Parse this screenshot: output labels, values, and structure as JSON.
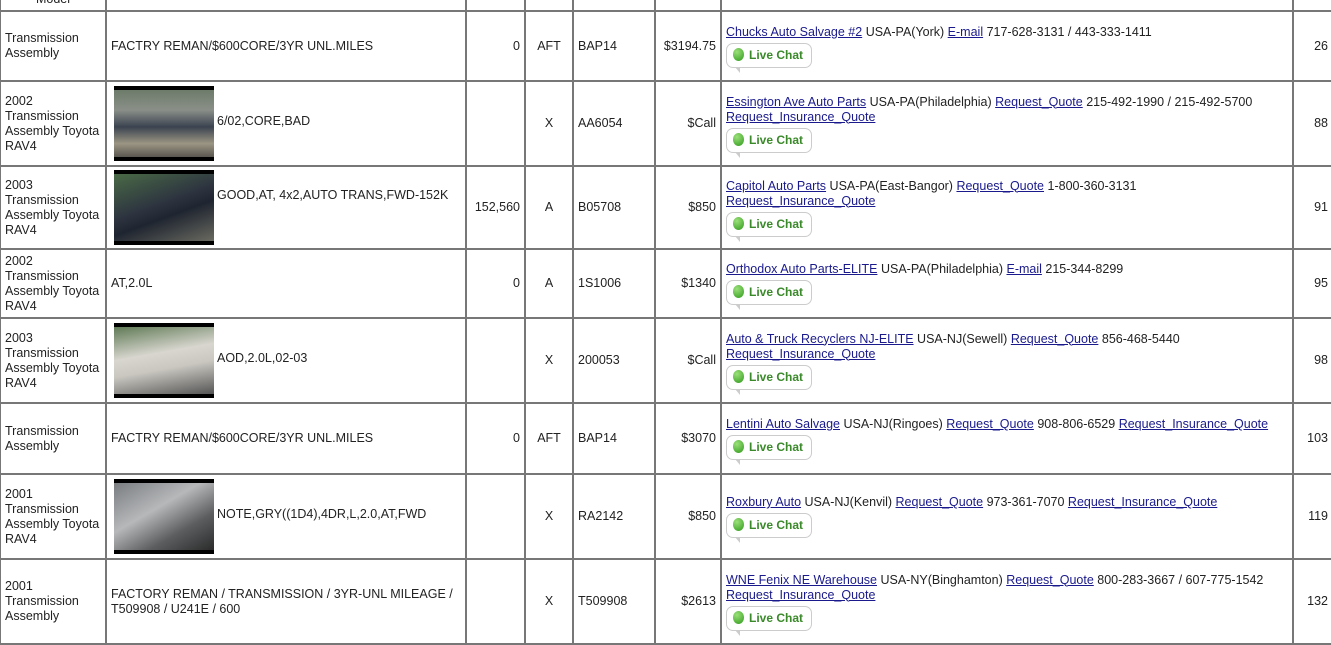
{
  "header_fragment": "Model",
  "live_chat_label": "Live Chat",
  "rows": [
    {
      "part": "Transmission Assembly",
      "photo": false,
      "desc": "FACTRY REMAN/$600CORE/3YR UNL.MILES",
      "miles": "0",
      "grade": "AFT",
      "stock": "BAP14",
      "price": "$3194.75",
      "dealer": "Chucks Auto Salvage #2",
      "location": "USA-PA(York)",
      "link1": "E-mail",
      "phone": "717-628-3131 / 443-333-1411",
      "link2": "",
      "dist": "26"
    },
    {
      "part": "2002 Transmission Assembly Toyota RAV4",
      "photo": true,
      "desc": "6/02,CORE,BAD",
      "miles": "",
      "grade": "X",
      "stock": "AA6054",
      "price": "$Call",
      "dealer": "Essington Ave Auto Parts",
      "location": "USA-PA(Philadelphia)",
      "link1": "Request_Quote",
      "phone": "215-492-1990 / 215-492-5700",
      "link2": "Request_Insurance_Quote",
      "dist": "88"
    },
    {
      "part": "2003 Transmission Assembly Toyota RAV4",
      "photo": true,
      "desc": "GOOD,AT, 4x2,AUTO TRANS,FWD-152K",
      "miles": "152,560",
      "grade": "A",
      "stock": "B05708",
      "price": "$850",
      "dealer": "Capitol Auto Parts",
      "location": "USA-PA(East-Bangor)",
      "link1": "Request_Quote",
      "phone": "1-800-360-3131",
      "link2": "Request_Insurance_Quote",
      "dist": "91"
    },
    {
      "part": "2002 Transmission Assembly Toyota RAV4",
      "photo": false,
      "desc": "AT,2.0L",
      "miles": "0",
      "grade": "A",
      "stock": "1S1006",
      "price": "$1340",
      "dealer": "Orthodox Auto Parts-ELITE",
      "location": "USA-PA(Philadelphia)",
      "link1": "E-mail",
      "phone": "215-344-8299",
      "link2": "",
      "dist": "95"
    },
    {
      "part": "2003 Transmission Assembly Toyota RAV4",
      "photo": true,
      "desc": "AOD,2.0L,02-03",
      "miles": "",
      "grade": "X",
      "stock": "200053",
      "price": "$Call",
      "dealer": "Auto & Truck Recyclers NJ-ELITE",
      "location": "USA-NJ(Sewell)",
      "link1": "Request_Quote",
      "phone": "856-468-5440",
      "link2": "Request_Insurance_Quote",
      "dist": "98"
    },
    {
      "part": "Transmission Assembly",
      "photo": false,
      "desc": "FACTRY REMAN/$600CORE/3YR UNL.MILES",
      "miles": "0",
      "grade": "AFT",
      "stock": "BAP14",
      "price": "$3070",
      "dealer": "Lentini Auto Salvage",
      "location": "USA-NJ(Ringoes)",
      "link1": "Request_Quote",
      "phone": "908-806-6529",
      "link2": "Request_Insurance_Quote",
      "dist": "103"
    },
    {
      "part": "2001 Transmission Assembly Toyota RAV4",
      "photo": true,
      "desc": "NOTE,GRY((1D4),4DR,L,2.0,AT,FWD",
      "miles": "",
      "grade": "X",
      "stock": "RA2142",
      "price": "$850",
      "dealer": "Roxbury Auto",
      "location": "USA-NJ(Kenvil)",
      "link1": "Request_Quote",
      "phone": "973-361-7070",
      "link2": "Request_Insurance_Quote",
      "dist": "119"
    },
    {
      "part": "2001 Transmission Assembly",
      "photo": false,
      "desc": "FACTORY REMAN / TRANSMISSION / 3YR-UNL MILEAGE / T509908 / U241E / 600",
      "miles": "",
      "grade": "X",
      "stock": "T509908",
      "price": "$2613",
      "dealer": "WNE Fenix NE Warehouse",
      "location": "USA-NY(Binghamton)",
      "link1": "Request_Quote",
      "phone": "800-283-3667 / 607-775-1542",
      "link2": "Request_Insurance_Quote",
      "dist": "132"
    }
  ]
}
